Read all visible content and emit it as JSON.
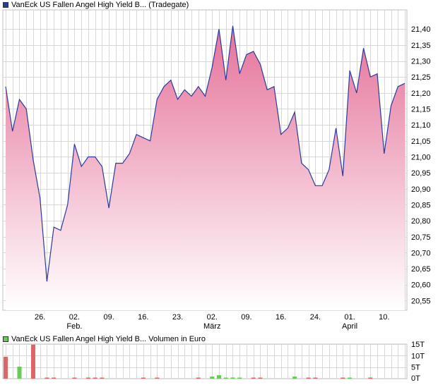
{
  "colors": {
    "price_line": "#2a3a9e",
    "area_top": "#e5729a",
    "area_bottom": "#ffffff",
    "grid": "#d7d7d7",
    "vol_up": "#66cc55",
    "vol_down": "#dd6666",
    "legend_price": "#2a3a9e",
    "legend_volume": "#66cc55"
  },
  "chart_data": [
    {
      "type": "area",
      "title": "VanEck US Fallen Angel High Yield B... (Tradegate)",
      "x_tick_labels": [
        "26.",
        "02.",
        "09.",
        "16.",
        "23.",
        "02.",
        "09.",
        "16.",
        "24.",
        "01.",
        "10."
      ],
      "x_month_labels": [
        "Feb.",
        "März",
        "April"
      ],
      "y_ticks": [
        "21,40",
        "21,35",
        "21,30",
        "21,25",
        "21,20",
        "21,15",
        "21,10",
        "21,05",
        "21,00",
        "20,95",
        "20,90",
        "20,85",
        "20,80",
        "20,75",
        "20,70",
        "20,65",
        "20,60",
        "20,55"
      ],
      "ylim": [
        20.52,
        21.46
      ],
      "grid": true,
      "series": [
        {
          "values": [
            21.22,
            21.08,
            21.18,
            21.15,
            20.99,
            20.87,
            20.61,
            20.78,
            20.77,
            20.85,
            21.04,
            20.97,
            21.0,
            21.0,
            20.97,
            20.84,
            20.98,
            20.98,
            21.01,
            21.07,
            21.06,
            21.05,
            21.18,
            21.22,
            21.24,
            21.18,
            21.21,
            21.19,
            21.22,
            21.19,
            21.28,
            21.4,
            21.24,
            21.41,
            21.26,
            21.32,
            21.33,
            21.29,
            21.21,
            21.22,
            21.07,
            21.09,
            21.14,
            20.98,
            20.96,
            20.91,
            20.91,
            20.96,
            21.09,
            20.94,
            21.27,
            21.2,
            21.34,
            21.25,
            21.26,
            21.01,
            21.16,
            21.22,
            21.23
          ]
        }
      ]
    },
    {
      "type": "bar",
      "title": "VanEck US Fallen Angel High Yield B... Volumen in Euro",
      "y_ticks": [
        "15T",
        "10T",
        "5T",
        "0T"
      ],
      "ylim": [
        0,
        15
      ],
      "values": [
        9.5,
        0,
        5.2,
        0,
        14.8,
        0,
        0.3,
        0.2,
        0,
        0,
        0.4,
        0,
        0.1,
        0.1,
        0.1,
        0,
        0,
        0,
        0,
        0,
        0.3,
        0,
        0.2,
        0,
        0,
        0,
        0,
        0,
        0.3,
        0,
        0.9,
        1.5,
        0.3,
        0.5,
        0.2,
        0,
        0.1,
        0.3,
        0,
        0,
        0,
        0,
        0.9,
        0,
        0.4,
        0.1,
        0,
        0,
        0,
        0.1,
        0.1,
        0,
        0,
        0.1,
        0,
        0,
        0,
        0,
        0
      ],
      "direction": [
        "down",
        "down",
        "up",
        "down",
        "down",
        "down",
        "down",
        "down",
        "down",
        "down",
        "down",
        "down",
        "down",
        "down",
        "down",
        "down",
        "down",
        "down",
        "down",
        "down",
        "down",
        "down",
        "down",
        "down",
        "down",
        "down",
        "down",
        "down",
        "down",
        "down",
        "up",
        "up",
        "up",
        "up",
        "up",
        "down",
        "down",
        "down",
        "down",
        "down",
        "down",
        "down",
        "up",
        "up",
        "down",
        "down",
        "down",
        "down",
        "down",
        "down",
        "up",
        "down",
        "down",
        "down",
        "down",
        "down",
        "down",
        "down",
        "down"
      ]
    }
  ]
}
